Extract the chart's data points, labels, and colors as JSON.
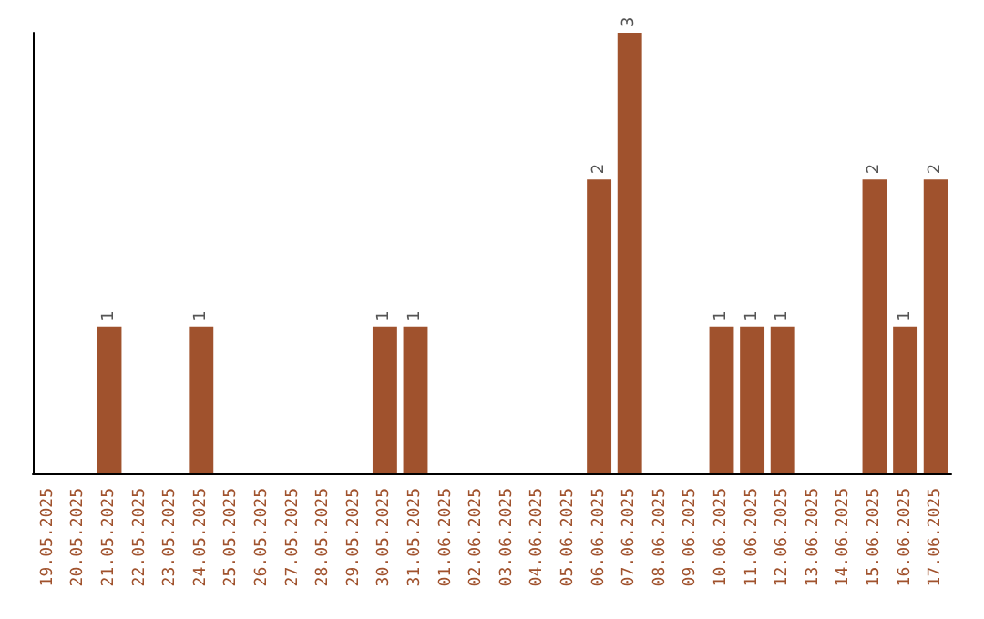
{
  "chart_data": {
    "type": "bar",
    "categories": [
      "19.05.2025",
      "20.05.2025",
      "21.05.2025",
      "22.05.2025",
      "23.05.2025",
      "24.05.2025",
      "25.05.2025",
      "26.05.2025",
      "27.05.2025",
      "28.05.2025",
      "29.05.2025",
      "30.05.2025",
      "31.05.2025",
      "01.06.2025",
      "02.06.2025",
      "03.06.2025",
      "04.06.2025",
      "05.06.2025",
      "06.06.2025",
      "07.06.2025",
      "08.06.2025",
      "09.06.2025",
      "10.06.2025",
      "11.06.2025",
      "12.06.2025",
      "13.06.2025",
      "14.06.2025",
      "15.06.2025",
      "16.06.2025",
      "17.06.2025"
    ],
    "values": [
      0,
      0,
      1,
      0,
      0,
      1,
      0,
      0,
      0,
      0,
      0,
      1,
      1,
      0,
      0,
      0,
      0,
      0,
      2,
      3,
      0,
      0,
      1,
      1,
      1,
      0,
      0,
      2,
      1,
      2
    ],
    "color": "#a0522d",
    "value_labels": [
      null,
      null,
      "1",
      null,
      null,
      "1",
      null,
      null,
      null,
      null,
      null,
      "1",
      "1",
      null,
      null,
      null,
      null,
      null,
      "2",
      "3",
      null,
      null,
      "1",
      "1",
      "1",
      null,
      null,
      "2",
      "1",
      "2"
    ],
    "tick_labels": "x",
    "grid": false
  }
}
